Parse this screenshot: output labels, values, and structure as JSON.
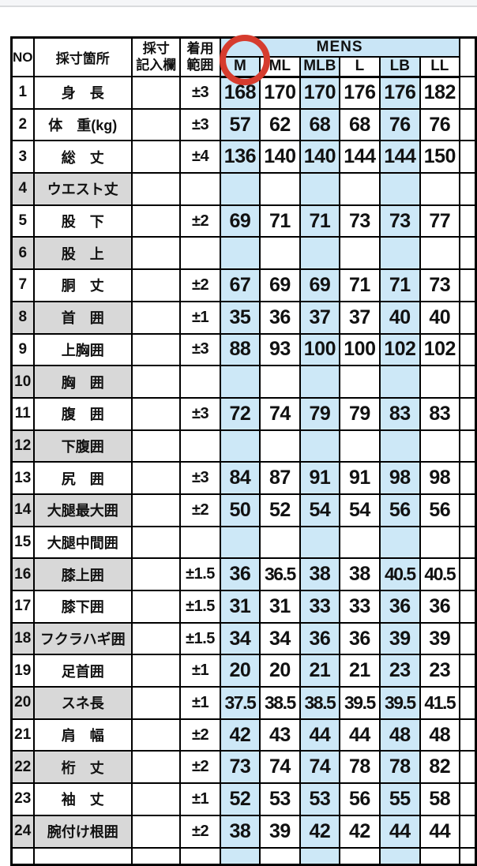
{
  "table": {
    "headers": {
      "no": "NO",
      "part": "採寸箇所",
      "entry": "採寸\n記入欄",
      "range": "着用\n範囲",
      "group": "MENS",
      "sizes": [
        "M",
        "ML",
        "MLB",
        "L",
        "LB",
        "LL"
      ]
    },
    "annotation": {
      "circled_size": "M"
    },
    "colors": {
      "highlight_blue": "#cde8f7",
      "band_blue": "#c9e5f6",
      "shaded_gray": "#d8d8d8",
      "circle_red": "#d63c2e"
    },
    "highlight_column_indexes": [
      0,
      2,
      4
    ],
    "rows": [
      {
        "no": "1",
        "label": "身　長",
        "range": "±3",
        "values": [
          "168",
          "170",
          "170",
          "176",
          "176",
          "182"
        ],
        "shaded": false
      },
      {
        "no": "2",
        "label": "体　重(kg)",
        "range": "±3",
        "values": [
          "57",
          "62",
          "68",
          "68",
          "76",
          "76"
        ],
        "shaded": false
      },
      {
        "no": "3",
        "label": "総　丈",
        "range": "±4",
        "values": [
          "136",
          "140",
          "140",
          "144",
          "144",
          "150"
        ],
        "shaded": false
      },
      {
        "no": "4",
        "label": "ウエスト丈",
        "range": "",
        "values": [
          "",
          "",
          "",
          "",
          "",
          ""
        ],
        "shaded": true
      },
      {
        "no": "5",
        "label": "股　下",
        "range": "±2",
        "values": [
          "69",
          "71",
          "71",
          "73",
          "73",
          "77"
        ],
        "shaded": false
      },
      {
        "no": "6",
        "label": "股　上",
        "range": "",
        "values": [
          "",
          "",
          "",
          "",
          "",
          ""
        ],
        "shaded": true
      },
      {
        "no": "7",
        "label": "胴　丈",
        "range": "±2",
        "values": [
          "67",
          "69",
          "69",
          "71",
          "71",
          "73"
        ],
        "shaded": false
      },
      {
        "no": "8",
        "label": "首　囲",
        "range": "±1",
        "values": [
          "35",
          "36",
          "37",
          "37",
          "40",
          "40"
        ],
        "shaded": true
      },
      {
        "no": "9",
        "label": "上胸囲",
        "range": "±3",
        "values": [
          "88",
          "93",
          "100",
          "100",
          "102",
          "102"
        ],
        "shaded": false
      },
      {
        "no": "10",
        "label": "胸　囲",
        "range": "",
        "values": [
          "",
          "",
          "",
          "",
          "",
          ""
        ],
        "shaded": true
      },
      {
        "no": "11",
        "label": "腹　囲",
        "range": "±3",
        "values": [
          "72",
          "74",
          "79",
          "79",
          "83",
          "83"
        ],
        "shaded": false
      },
      {
        "no": "12",
        "label": "下腹囲",
        "range": "",
        "values": [
          "",
          "",
          "",
          "",
          "",
          ""
        ],
        "shaded": true
      },
      {
        "no": "13",
        "label": "尻　囲",
        "range": "±3",
        "values": [
          "84",
          "87",
          "91",
          "91",
          "98",
          "98"
        ],
        "shaded": false
      },
      {
        "no": "14",
        "label": "大腿最大囲",
        "range": "±2",
        "values": [
          "50",
          "52",
          "54",
          "54",
          "56",
          "56"
        ],
        "shaded": true
      },
      {
        "no": "15",
        "label": "大腿中間囲",
        "range": "",
        "values": [
          "",
          "",
          "",
          "",
          "",
          ""
        ],
        "shaded": false
      },
      {
        "no": "16",
        "label": "膝上囲",
        "range": "±1.5",
        "values": [
          "36",
          "36.5",
          "38",
          "38",
          "40.5",
          "40.5"
        ],
        "shaded": true
      },
      {
        "no": "17",
        "label": "膝下囲",
        "range": "±1.5",
        "values": [
          "31",
          "31",
          "33",
          "33",
          "36",
          "36"
        ],
        "shaded": false
      },
      {
        "no": "18",
        "label": "フクラハギ囲",
        "range": "±1.5",
        "values": [
          "34",
          "34",
          "36",
          "36",
          "39",
          "39"
        ],
        "shaded": true
      },
      {
        "no": "19",
        "label": "足首囲",
        "range": "±1",
        "values": [
          "20",
          "20",
          "21",
          "21",
          "23",
          "23"
        ],
        "shaded": false
      },
      {
        "no": "20",
        "label": "スネ長",
        "range": "±1",
        "values": [
          "37.5",
          "38.5",
          "38.5",
          "39.5",
          "39.5",
          "41.5"
        ],
        "shaded": true
      },
      {
        "no": "21",
        "label": "肩　幅",
        "range": "±2",
        "values": [
          "42",
          "43",
          "44",
          "44",
          "48",
          "48"
        ],
        "shaded": false
      },
      {
        "no": "22",
        "label": "桁　丈",
        "range": "±2",
        "values": [
          "73",
          "74",
          "74",
          "78",
          "78",
          "82"
        ],
        "shaded": true
      },
      {
        "no": "23",
        "label": "袖　丈",
        "range": "±1",
        "values": [
          "52",
          "53",
          "53",
          "56",
          "55",
          "58"
        ],
        "shaded": false
      },
      {
        "no": "24",
        "label": "腕付け根囲",
        "range": "±2",
        "values": [
          "38",
          "39",
          "42",
          "42",
          "44",
          "44"
        ],
        "shaded": true
      }
    ],
    "partial_next_row_visible": true,
    "partial_next_column_visible": true
  }
}
